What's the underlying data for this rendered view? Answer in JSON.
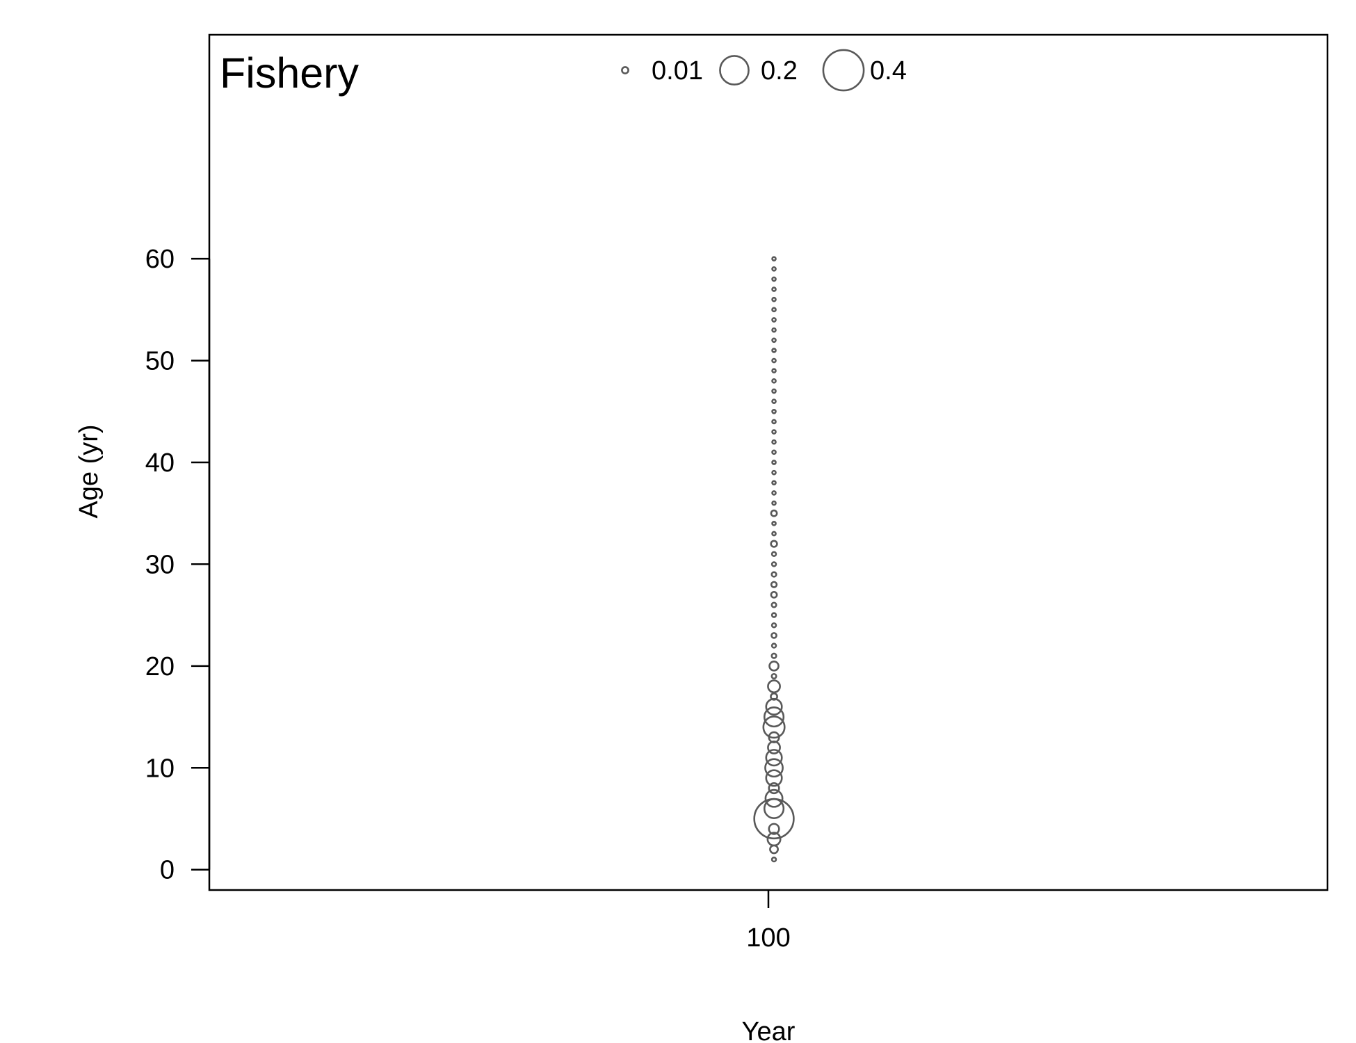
{
  "chart_data": {
    "type": "scatter",
    "title": "Fishery",
    "xlabel": "Year",
    "ylabel": "Age (yr)",
    "x_ticks": [
      100
    ],
    "y_ticks": [
      0,
      10,
      20,
      30,
      40,
      50,
      60
    ],
    "xlim": [
      99.5,
      100.5
    ],
    "ylim": [
      -2,
      82
    ],
    "grid": false,
    "legend_position": "top",
    "legend": [
      {
        "label": "0.01",
        "value": 0.01
      },
      {
        "label": "0.2",
        "value": 0.2
      },
      {
        "label": "0.4",
        "value": 0.4
      }
    ],
    "bubble_color": "#595959",
    "x": 100.005,
    "points": [
      {
        "age": 1,
        "value": 0.004
      },
      {
        "age": 2,
        "value": 0.015
      },
      {
        "age": 3,
        "value": 0.04
      },
      {
        "age": 4,
        "value": 0.025
      },
      {
        "age": 5,
        "value": 0.38
      },
      {
        "age": 6,
        "value": 0.09
      },
      {
        "age": 7,
        "value": 0.07
      },
      {
        "age": 8,
        "value": 0.025
      },
      {
        "age": 9,
        "value": 0.06
      },
      {
        "age": 10,
        "value": 0.075
      },
      {
        "age": 11,
        "value": 0.06
      },
      {
        "age": 12,
        "value": 0.035
      },
      {
        "age": 13,
        "value": 0.025
      },
      {
        "age": 14,
        "value": 0.11
      },
      {
        "age": 15,
        "value": 0.09
      },
      {
        "age": 16,
        "value": 0.06
      },
      {
        "age": 17,
        "value": 0.01
      },
      {
        "age": 18,
        "value": 0.035
      },
      {
        "age": 19,
        "value": 0.005
      },
      {
        "age": 20,
        "value": 0.02
      },
      {
        "age": 21,
        "value": 0.005
      },
      {
        "age": 22,
        "value": 0.004
      },
      {
        "age": 23,
        "value": 0.006
      },
      {
        "age": 24,
        "value": 0.004
      },
      {
        "age": 25,
        "value": 0.004
      },
      {
        "age": 26,
        "value": 0.005
      },
      {
        "age": 27,
        "value": 0.008
      },
      {
        "age": 28,
        "value": 0.007
      },
      {
        "age": 29,
        "value": 0.005
      },
      {
        "age": 30,
        "value": 0.004
      },
      {
        "age": 31,
        "value": 0.004
      },
      {
        "age": 32,
        "value": 0.009
      },
      {
        "age": 33,
        "value": 0.003
      },
      {
        "age": 34,
        "value": 0.003
      },
      {
        "age": 35,
        "value": 0.008
      },
      {
        "age": 36,
        "value": 0.003
      },
      {
        "age": 37,
        "value": 0.003
      },
      {
        "age": 38,
        "value": 0.003
      },
      {
        "age": 39,
        "value": 0.003
      },
      {
        "age": 40,
        "value": 0.003
      },
      {
        "age": 41,
        "value": 0.003
      },
      {
        "age": 42,
        "value": 0.003
      },
      {
        "age": 43,
        "value": 0.003
      },
      {
        "age": 44,
        "value": 0.003
      },
      {
        "age": 45,
        "value": 0.003
      },
      {
        "age": 46,
        "value": 0.003
      },
      {
        "age": 47,
        "value": 0.003
      },
      {
        "age": 48,
        "value": 0.003
      },
      {
        "age": 49,
        "value": 0.003
      },
      {
        "age": 50,
        "value": 0.003
      },
      {
        "age": 51,
        "value": 0.003
      },
      {
        "age": 52,
        "value": 0.003
      },
      {
        "age": 53,
        "value": 0.003
      },
      {
        "age": 54,
        "value": 0.003
      },
      {
        "age": 55,
        "value": 0.003
      },
      {
        "age": 56,
        "value": 0.003
      },
      {
        "age": 57,
        "value": 0.003
      },
      {
        "age": 58,
        "value": 0.003
      },
      {
        "age": 59,
        "value": 0.003
      },
      {
        "age": 60,
        "value": 0.003
      }
    ]
  }
}
